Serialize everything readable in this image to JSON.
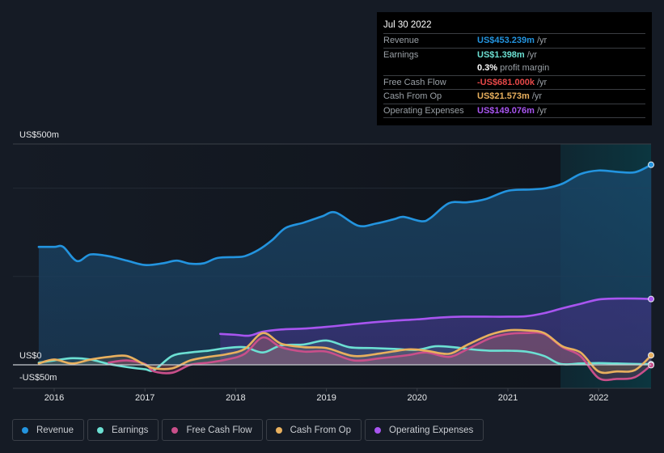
{
  "tooltip": {
    "date": "Jul 30 2022",
    "rows": [
      {
        "label": "Revenue",
        "value": "US$453.239m",
        "unit": "/yr",
        "color": "#2394df"
      },
      {
        "label": "Earnings",
        "value": "US$1.398m",
        "unit": "/yr",
        "color": "#6ce0d3"
      },
      {
        "label": "",
        "value": "0.3%",
        "unit": "profit margin",
        "color": "#ffffff"
      },
      {
        "label": "Free Cash Flow",
        "value": "-US$681.000k",
        "unit": "/yr",
        "color": "#e64848"
      },
      {
        "label": "Cash From Op",
        "value": "US$21.573m",
        "unit": "/yr",
        "color": "#e8b05e"
      },
      {
        "label": "Operating Expenses",
        "value": "US$149.076m",
        "unit": "/yr",
        "color": "#a855f0"
      }
    ]
  },
  "legend": [
    {
      "label": "Revenue",
      "color": "#2394df"
    },
    {
      "label": "Earnings",
      "color": "#6ce0d3"
    },
    {
      "label": "Free Cash Flow",
      "color": "#c94f8a"
    },
    {
      "label": "Cash From Op",
      "color": "#e8b05e"
    },
    {
      "label": "Operating Expenses",
      "color": "#a855f0"
    }
  ],
  "chart_data": {
    "type": "line",
    "title": "",
    "xlabel": "",
    "ylabel": "",
    "y_tick_labels": [
      "US$500m",
      "US$0",
      "-US$50m"
    ],
    "x_tick_labels": [
      "2016",
      "2017",
      "2018",
      "2019",
      "2020",
      "2021",
      "2022"
    ],
    "xlim": [
      2015.83,
      2022.58
    ],
    "ylim": [
      -50,
      500
    ],
    "grid": true,
    "legend_position": "bottom",
    "forecast_shade_start": 2021.58,
    "series": [
      {
        "name": "Revenue",
        "color": "#2394df",
        "x": [
          2015.83,
          2016.0,
          2016.1,
          2016.25,
          2016.4,
          2016.6,
          2016.8,
          2017.0,
          2017.2,
          2017.35,
          2017.5,
          2017.65,
          2017.8,
          2018.0,
          2018.1,
          2018.25,
          2018.4,
          2018.55,
          2018.75,
          2018.95,
          2019.1,
          2019.35,
          2019.55,
          2019.75,
          2019.85,
          2020.05,
          2020.15,
          2020.35,
          2020.55,
          2020.75,
          2021.0,
          2021.25,
          2021.42,
          2021.6,
          2021.8,
          2022.0,
          2022.2,
          2022.4,
          2022.58
        ],
        "values": [
          267,
          267,
          267,
          235,
          250,
          246,
          236,
          226,
          230,
          236,
          229,
          230,
          242,
          244,
          246,
          260,
          282,
          310,
          322,
          336,
          345,
          315,
          320,
          330,
          335,
          325,
          333,
          366,
          368,
          375,
          394,
          397,
          400,
          410,
          432,
          440,
          437,
          436,
          453
        ]
      },
      {
        "name": "Earnings",
        "color": "#6ce0d3",
        "x": [
          2015.83,
          2016.0,
          2016.2,
          2016.4,
          2016.6,
          2016.8,
          2017.0,
          2017.1,
          2017.3,
          2017.5,
          2017.7,
          2017.9,
          2018.1,
          2018.3,
          2018.5,
          2018.75,
          2019.0,
          2019.25,
          2019.5,
          2019.75,
          2020.0,
          2020.2,
          2020.4,
          2020.6,
          2020.8,
          2021.0,
          2021.2,
          2021.4,
          2021.58,
          2021.8,
          2022.0,
          2022.2,
          2022.4,
          2022.58
        ],
        "values": [
          5,
          10,
          15,
          12,
          2,
          -5,
          -10,
          -12,
          20,
          28,
          32,
          38,
          40,
          28,
          44,
          46,
          55,
          40,
          38,
          36,
          34,
          42,
          40,
          35,
          32,
          32,
          30,
          20,
          2,
          3,
          4,
          3,
          2,
          1.4
        ]
      },
      {
        "name": "Free Cash Flow",
        "color": "#c94f8a",
        "x": [
          2016.6,
          2016.8,
          2017.0,
          2017.1,
          2017.3,
          2017.5,
          2017.7,
          2017.9,
          2018.1,
          2018.3,
          2018.5,
          2018.75,
          2019.0,
          2019.3,
          2019.6,
          2019.9,
          2020.1,
          2020.35,
          2020.55,
          2020.8,
          2021.0,
          2021.2,
          2021.4,
          2021.6,
          2021.8,
          2022.0,
          2022.2,
          2022.4,
          2022.58
        ],
        "values": [
          5,
          10,
          2,
          -15,
          -18,
          0,
          5,
          12,
          25,
          62,
          40,
          30,
          30,
          10,
          15,
          22,
          28,
          18,
          35,
          60,
          70,
          72,
          70,
          40,
          20,
          -30,
          -32,
          -28,
          -0.7
        ]
      },
      {
        "name": "Cash From Op",
        "color": "#e8b05e",
        "x": [
          2015.83,
          2016.0,
          2016.2,
          2016.4,
          2016.6,
          2016.8,
          2017.0,
          2017.1,
          2017.3,
          2017.5,
          2017.7,
          2017.9,
          2018.1,
          2018.3,
          2018.5,
          2018.75,
          2019.0,
          2019.3,
          2019.6,
          2019.9,
          2020.1,
          2020.35,
          2020.55,
          2020.8,
          2021.0,
          2021.2,
          2021.4,
          2021.6,
          2021.8,
          2022.0,
          2022.2,
          2022.4,
          2022.58
        ],
        "values": [
          3,
          12,
          3,
          12,
          18,
          20,
          0,
          -8,
          -8,
          10,
          18,
          24,
          36,
          72,
          48,
          40,
          38,
          20,
          26,
          35,
          32,
          25,
          45,
          68,
          78,
          78,
          72,
          42,
          28,
          -15,
          -15,
          -12,
          21.6
        ]
      },
      {
        "name": "Operating Expenses",
        "color": "#a855f0",
        "x": [
          2017.83,
          2018.0,
          2018.15,
          2018.3,
          2018.5,
          2018.75,
          2019.0,
          2019.25,
          2019.5,
          2019.75,
          2020.0,
          2020.25,
          2020.5,
          2020.75,
          2021.0,
          2021.2,
          2021.4,
          2021.6,
          2021.8,
          2022.0,
          2022.2,
          2022.4,
          2022.58
        ],
        "values": [
          70,
          68,
          66,
          75,
          80,
          82,
          86,
          91,
          96,
          100,
          103,
          107,
          109,
          109,
          109,
          110,
          117,
          128,
          138,
          148,
          150,
          150,
          149
        ]
      }
    ]
  }
}
